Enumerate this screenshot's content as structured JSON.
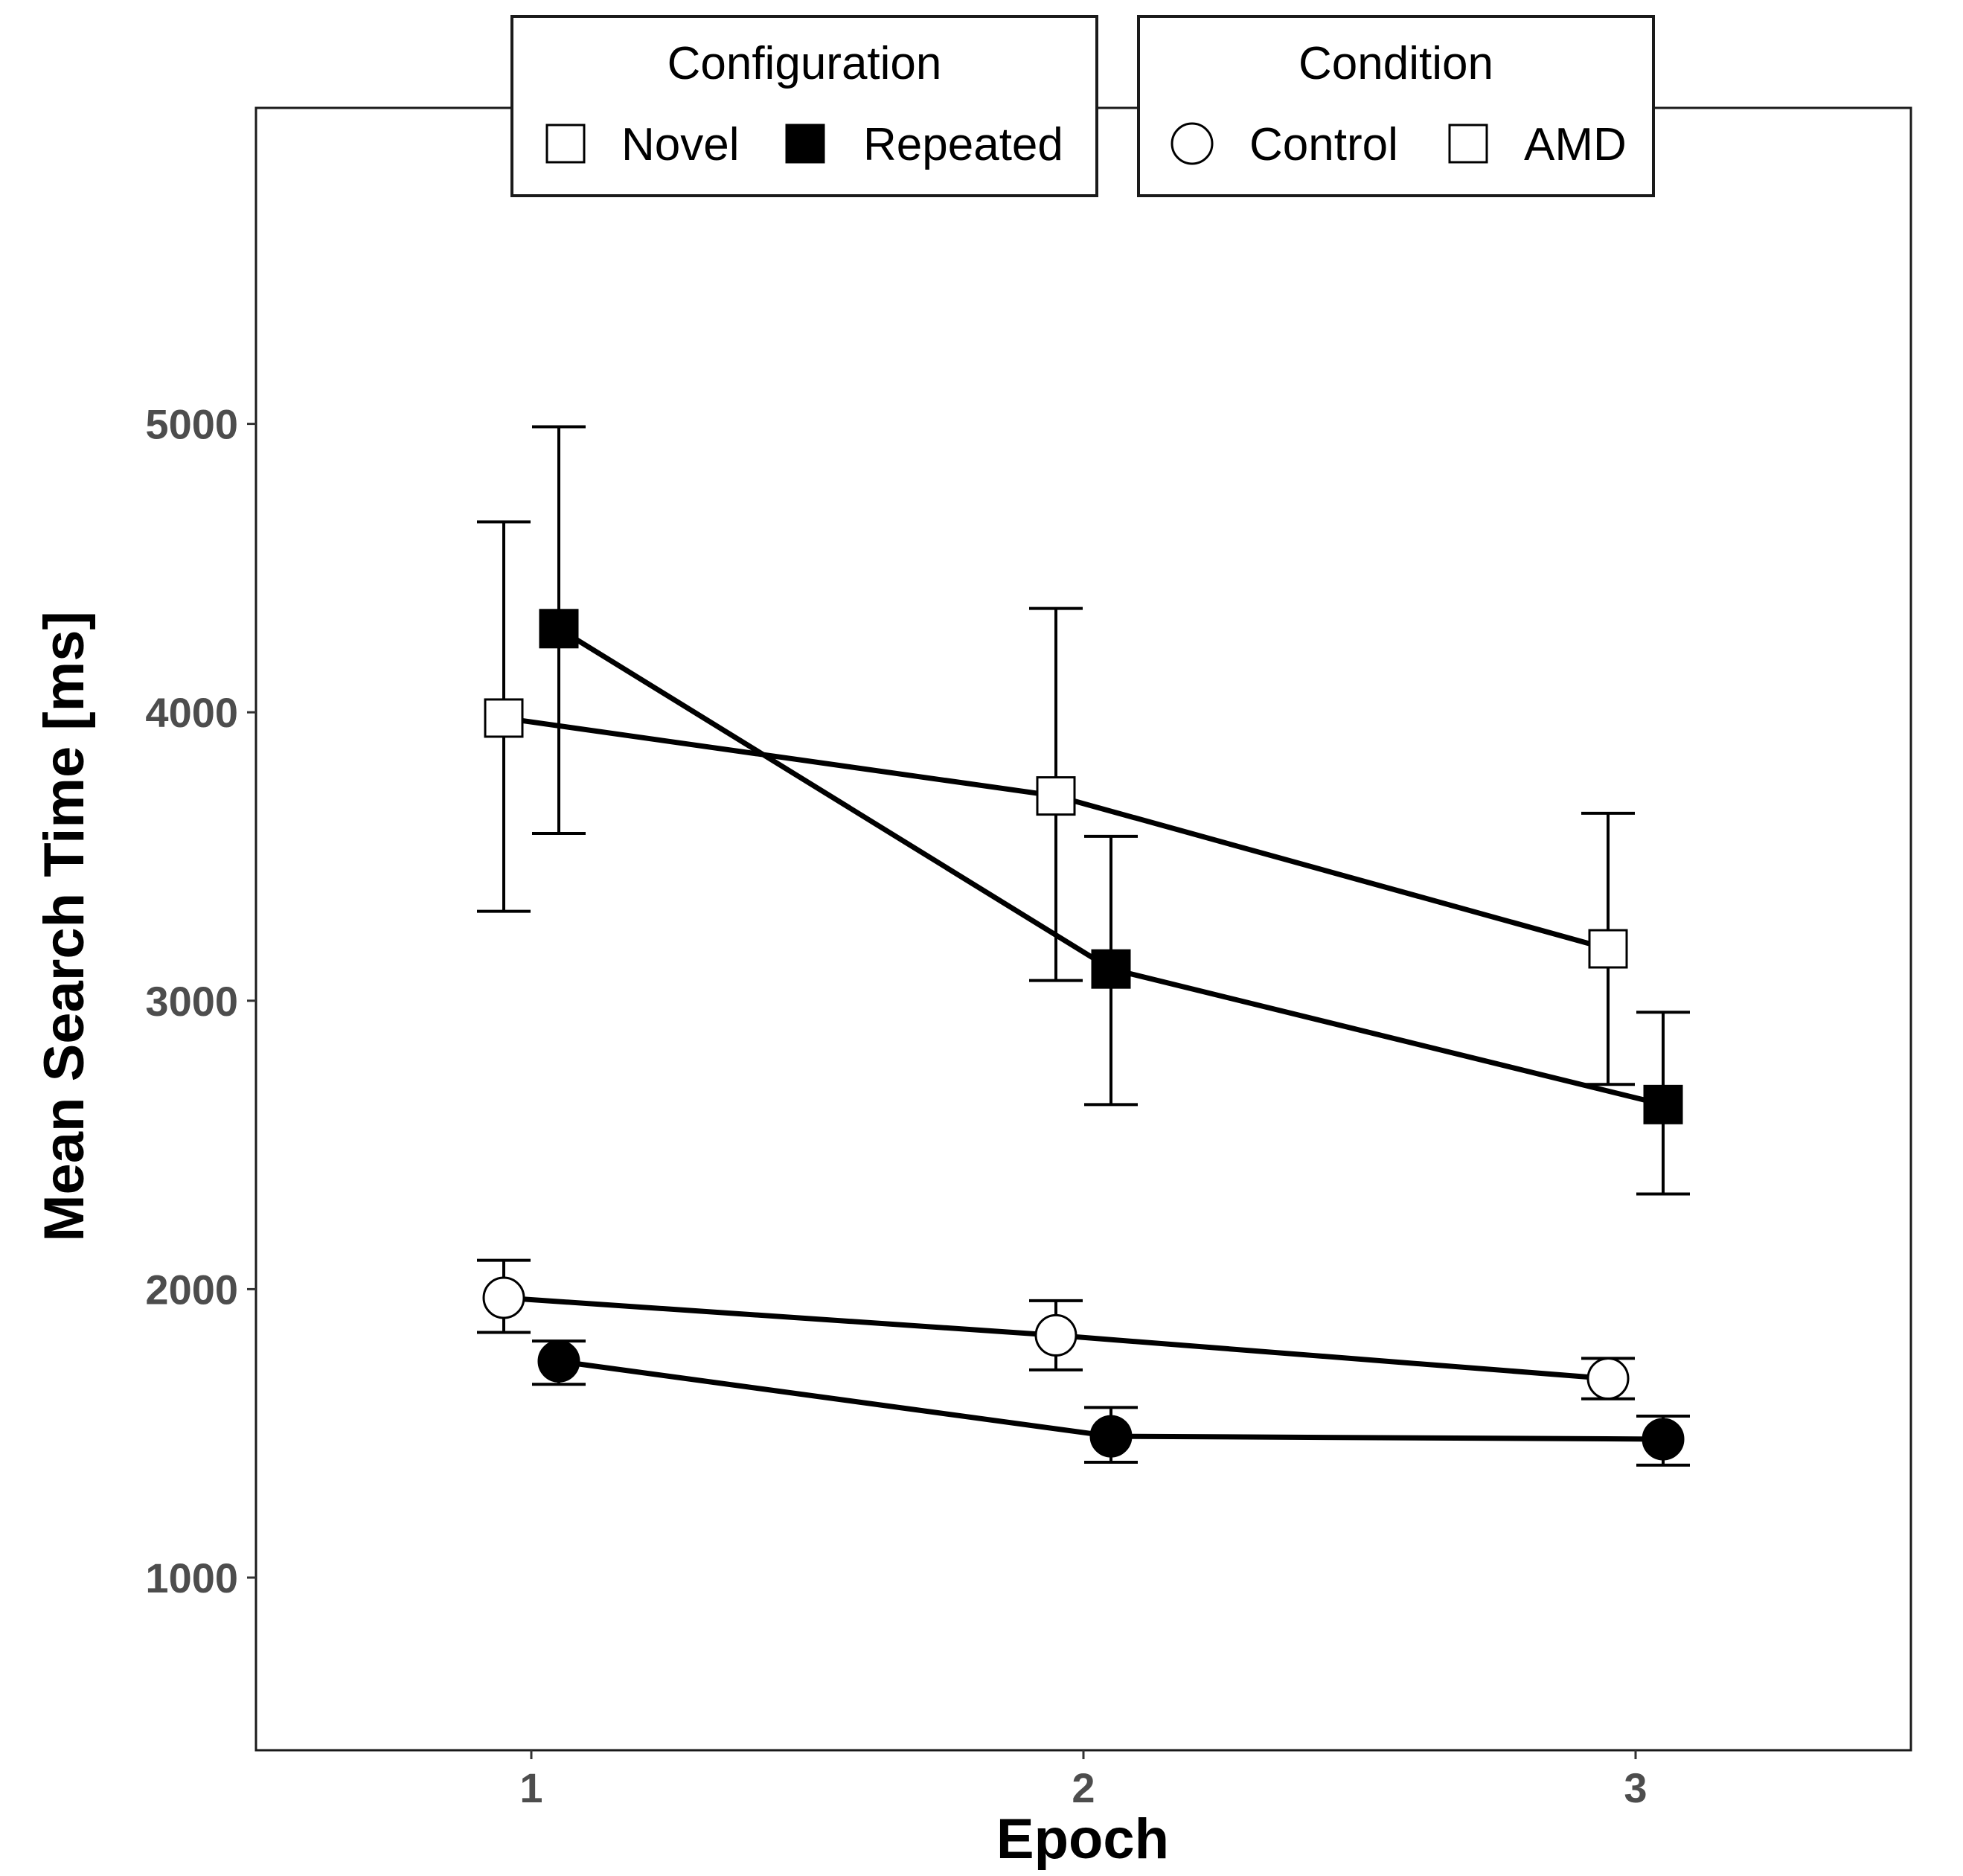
{
  "chart_data": {
    "type": "line",
    "title": "",
    "xlabel": "Epoch",
    "ylabel": "Mean Search Time [ms]",
    "x": [
      1,
      2,
      3
    ],
    "x_ticks": [
      1,
      2,
      3
    ],
    "y_ticks": [
      1000,
      2000,
      3000,
      4000,
      5000
    ],
    "xlim": [
      0.5,
      3.5
    ],
    "ylim": [
      410,
      6100
    ],
    "grid": false,
    "error_bars": true,
    "legend_placement": "top",
    "legends": [
      {
        "title": "Configuration",
        "entries": [
          {
            "label": "Novel",
            "marker": "square",
            "fill": "white"
          },
          {
            "label": "Repeated",
            "marker": "square",
            "fill": "black"
          }
        ]
      },
      {
        "title": "Condition",
        "entries": [
          {
            "label": "Control",
            "marker": "circle",
            "fill": "white"
          },
          {
            "label": "AMD",
            "marker": "square",
            "fill": "white"
          }
        ]
      }
    ],
    "series": [
      {
        "name": "AMD - Novel",
        "configuration": "Novel",
        "condition": "AMD",
        "marker": "square",
        "fill": "white",
        "values": [
          3980,
          3710,
          3180
        ],
        "error_low": [
          3310,
          3070,
          2710
        ],
        "error_high": [
          4660,
          4360,
          3650
        ]
      },
      {
        "name": "AMD - Repeated",
        "configuration": "Repeated",
        "condition": "AMD",
        "marker": "square",
        "fill": "black",
        "values": [
          4290,
          3110,
          2640
        ],
        "error_low": [
          3580,
          2640,
          2330
        ],
        "error_high": [
          4990,
          3570,
          2960
        ]
      },
      {
        "name": "Control - Novel",
        "configuration": "Novel",
        "condition": "Control",
        "marker": "circle",
        "fill": "white",
        "values": [
          1970,
          1840,
          1690
        ],
        "error_low": [
          1850,
          1720,
          1620
        ],
        "error_high": [
          2100,
          1960,
          1760
        ]
      },
      {
        "name": "Control - Repeated",
        "configuration": "Repeated",
        "condition": "Control",
        "marker": "circle",
        "fill": "black",
        "values": [
          1750,
          1490,
          1480
        ],
        "error_low": [
          1670,
          1400,
          1390
        ],
        "error_high": [
          1820,
          1590,
          1560
        ]
      }
    ],
    "colors": {
      "line": "#000000",
      "panel_border": "#1a1a1a",
      "tick_label": "#4d4d4d",
      "filled_marker": "#000000",
      "open_marker": "#ffffff"
    }
  }
}
